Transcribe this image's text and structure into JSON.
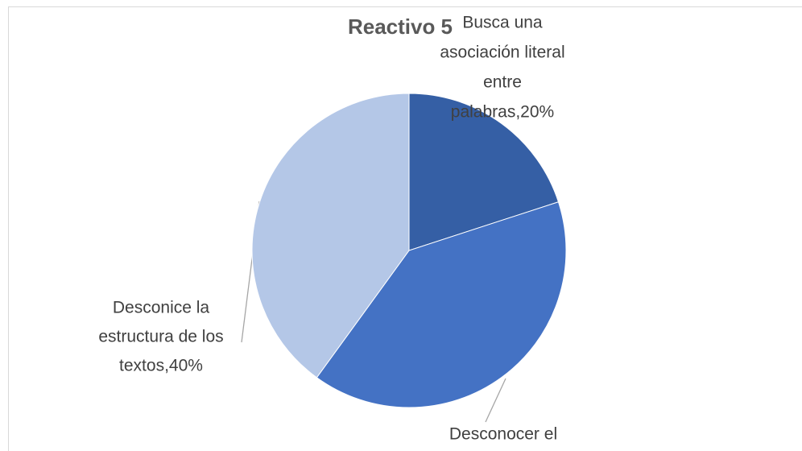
{
  "chart_data": {
    "type": "pie",
    "title": "Reactivo 5",
    "values": [
      20,
      40,
      40
    ],
    "label_lines": [
      [
        "Busca una",
        "asociación literal",
        "entre",
        "palabras,20%"
      ],
      [
        "Desconocer el"
      ],
      [
        "Desconice la",
        "estructura de los",
        "textos,40%"
      ]
    ],
    "colors": [
      "#355fa5",
      "#4472c4",
      "#b4c7e7"
    ]
  }
}
